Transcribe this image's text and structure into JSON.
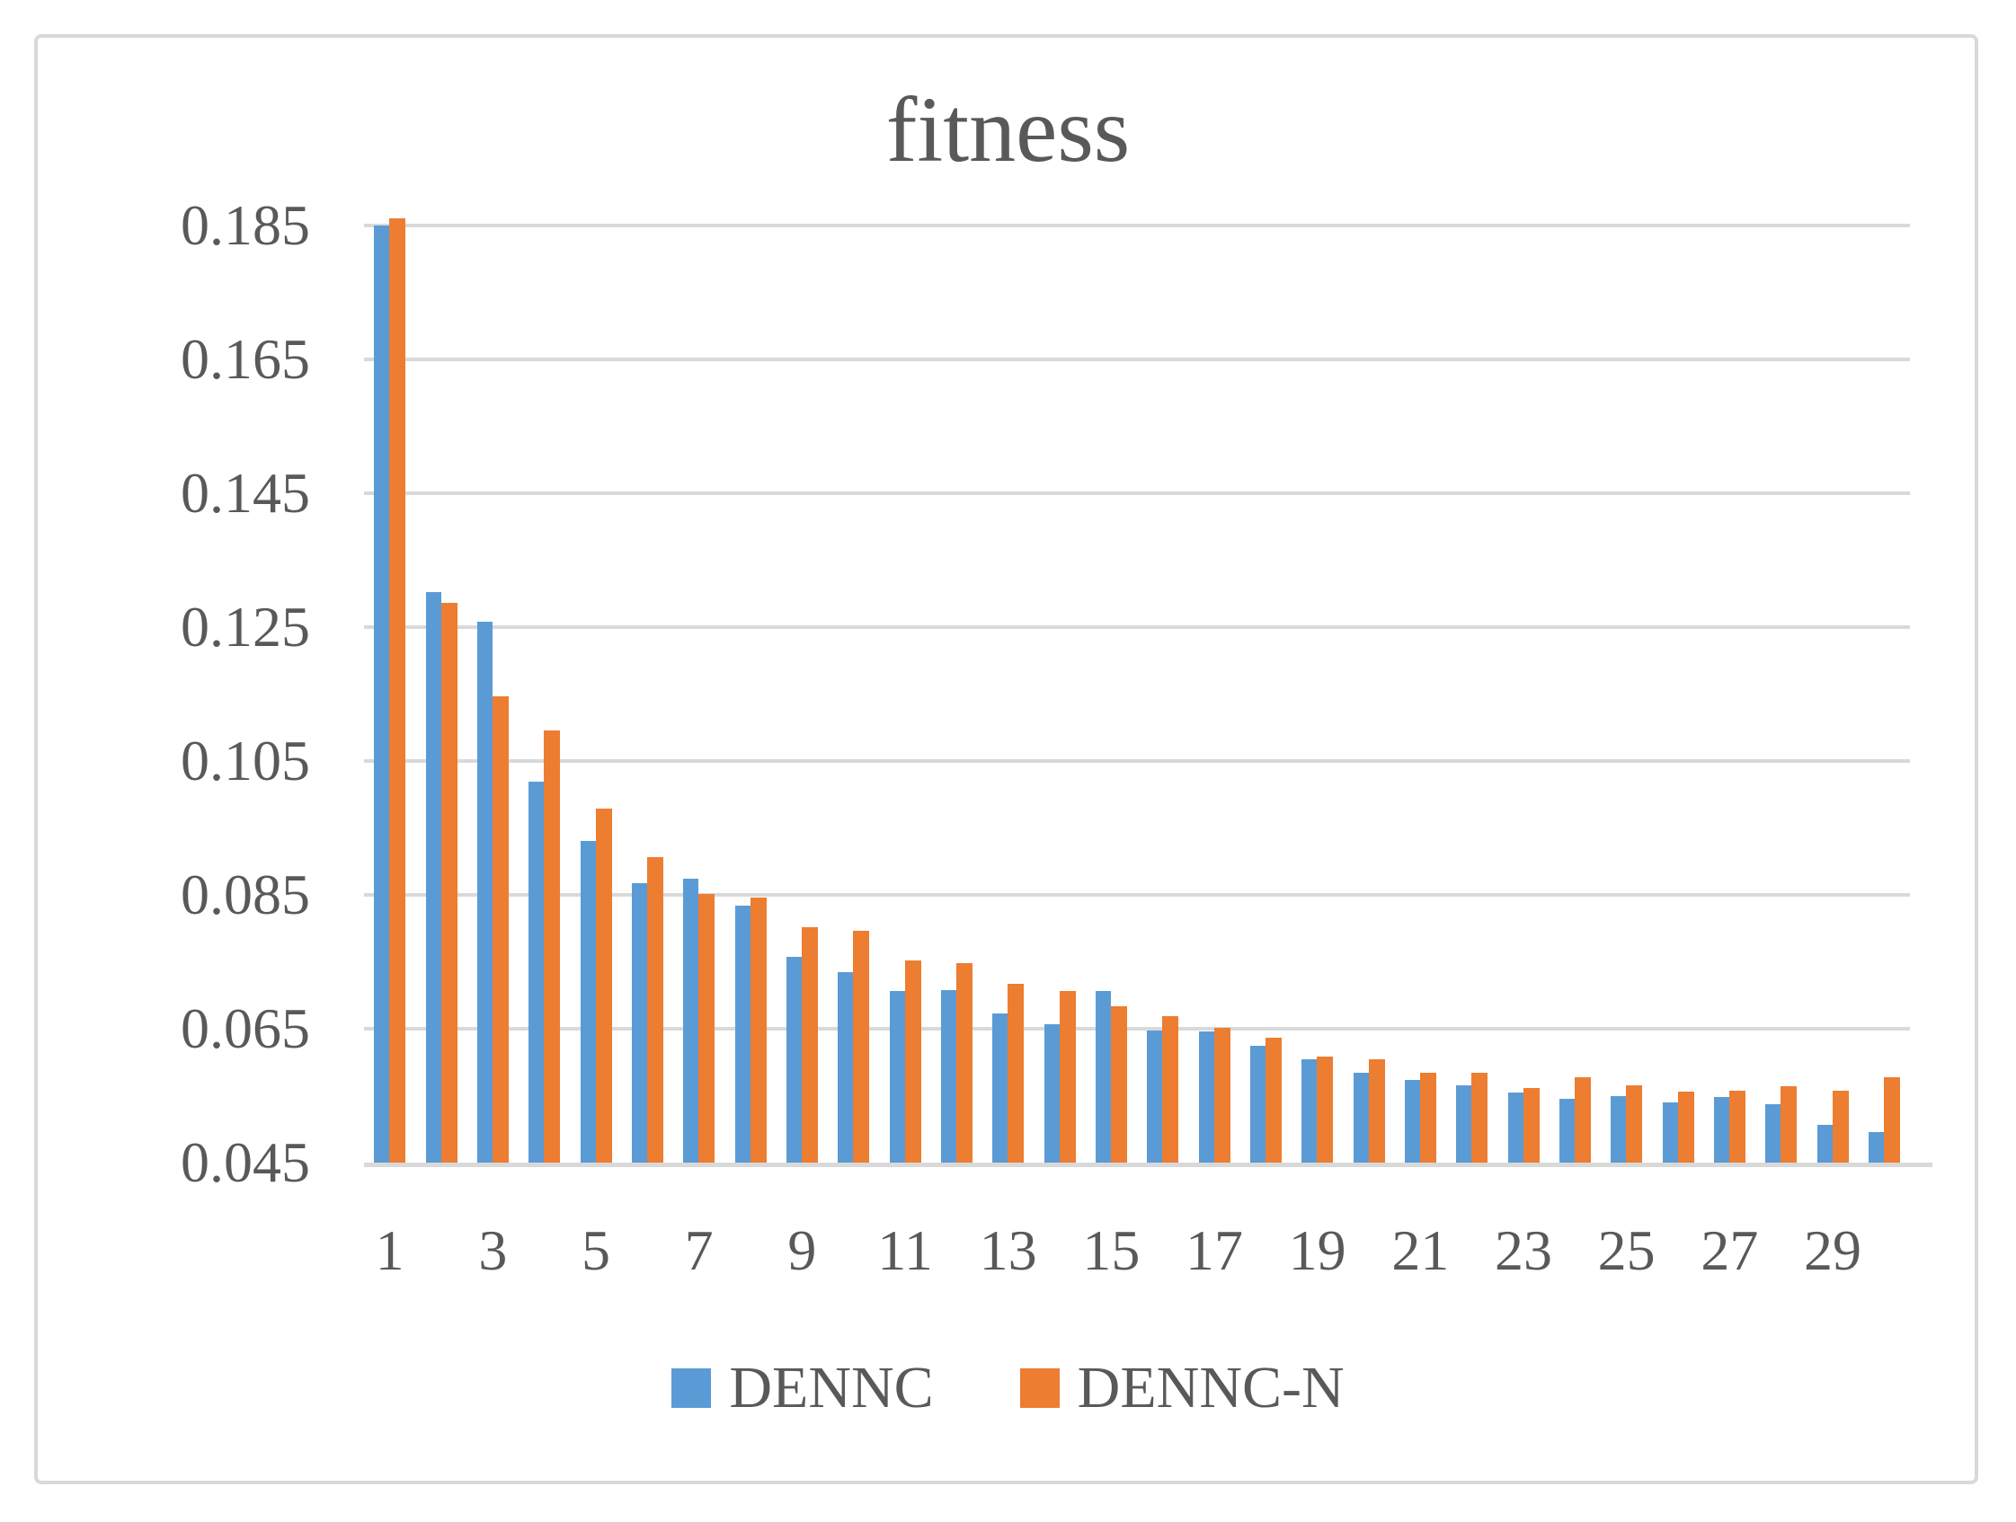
{
  "chart_data": {
    "type": "bar",
    "title": "fitness",
    "categories": [
      1,
      2,
      3,
      4,
      5,
      6,
      7,
      8,
      9,
      10,
      11,
      12,
      13,
      14,
      15,
      16,
      17,
      18,
      19,
      20,
      21,
      22,
      23,
      24,
      25,
      26,
      27,
      28,
      29,
      30
    ],
    "x_tick_labels_shown": [
      "1",
      "3",
      "5",
      "7",
      "9",
      "11",
      "13",
      "15",
      "17",
      "19",
      "21",
      "23",
      "25",
      "27",
      "29"
    ],
    "series": [
      {
        "name": "DENNC",
        "color": "#5B9BD5",
        "values": [
          0.185,
          0.1303,
          0.1258,
          0.1019,
          0.093,
          0.0868,
          0.0874,
          0.0834,
          0.0757,
          0.0734,
          0.0707,
          0.0708,
          0.0673,
          0.0657,
          0.0706,
          0.0647,
          0.0646,
          0.0624,
          0.0604,
          0.0584,
          0.0573,
          0.0566,
          0.0555,
          0.0545,
          0.055,
          0.054,
          0.0548,
          0.0537,
          0.0507,
          0.0495
        ]
      },
      {
        "name": "DENNC-N",
        "color": "#ED7D31",
        "values": [
          0.1861,
          0.1286,
          0.1147,
          0.1095,
          0.0979,
          0.0906,
          0.0852,
          0.0846,
          0.0802,
          0.0796,
          0.0752,
          0.0748,
          0.0717,
          0.0706,
          0.0684,
          0.0669,
          0.0652,
          0.0637,
          0.0609,
          0.0604,
          0.0584,
          0.0584,
          0.0561,
          0.0578,
          0.0566,
          0.0556,
          0.0558,
          0.0564,
          0.0557,
          0.0578
        ]
      }
    ],
    "y_ticks": [
      "0.185",
      "0.165",
      "0.145",
      "0.125",
      "0.105",
      "0.085",
      "0.065",
      "0.045"
    ],
    "y_tick_values": [
      0.185,
      0.165,
      0.145,
      0.125,
      0.105,
      0.085,
      0.065,
      0.045
    ],
    "ylim": [
      0.045,
      0.186
    ],
    "grid": true,
    "legend_position": "bottom",
    "colors": {
      "grid": "#D9D9D9",
      "axis": "#D9D9D9",
      "text": "#595959",
      "frame_border": "#D9D9D9",
      "background": "#FFFFFF"
    }
  }
}
